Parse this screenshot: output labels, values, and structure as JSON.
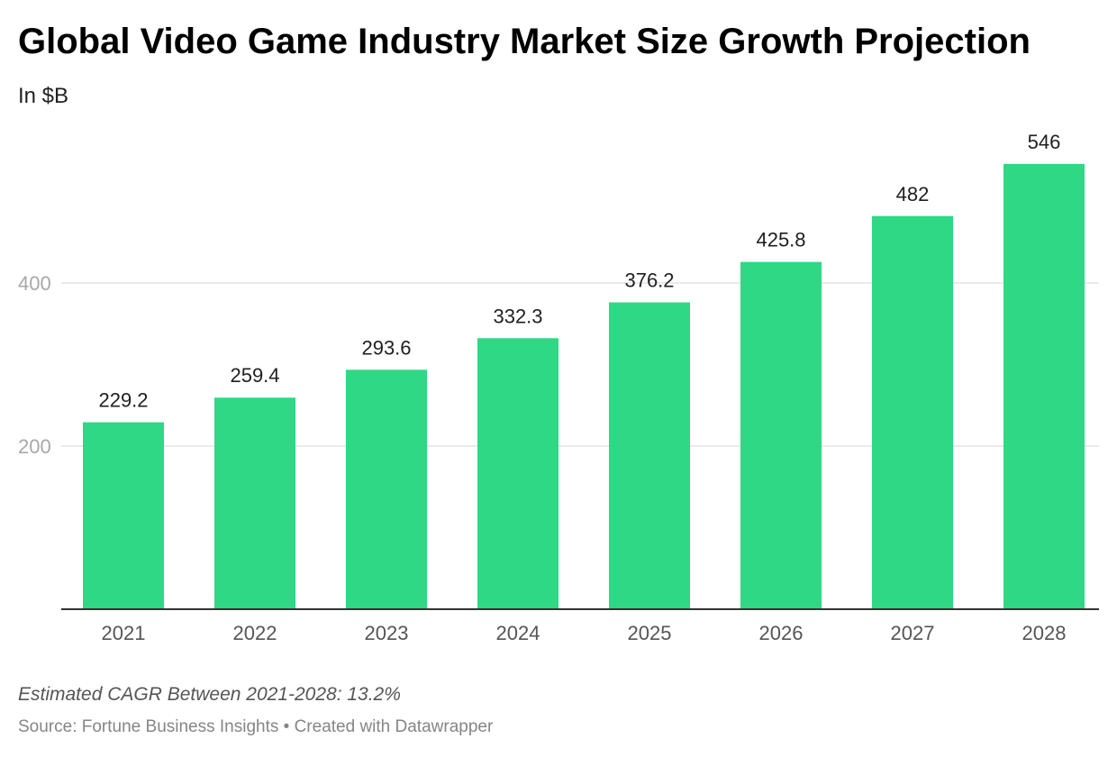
{
  "chart_data": {
    "type": "bar",
    "title": "Global Video Game Industry Market Size Growth Projection",
    "subtitle": "In $B",
    "categories": [
      "2021",
      "2022",
      "2023",
      "2024",
      "2025",
      "2026",
      "2027",
      "2028"
    ],
    "values": [
      229.2,
      259.4,
      293.6,
      332.3,
      376.2,
      425.8,
      482,
      546
    ],
    "value_labels": [
      "229.2",
      "259.4",
      "293.6",
      "332.3",
      "376.2",
      "425.8",
      "482",
      "546"
    ],
    "y_ticks": [
      200,
      400
    ],
    "ylim": [
      0,
      600
    ],
    "grid": true,
    "legend": "none",
    "xlabel": "",
    "ylabel": "",
    "bar_color": "#2ed885",
    "gridline_color": "#e3e3e3",
    "baseline_color": "#333333"
  },
  "footer": {
    "note": "Estimated CAGR Between 2021-2028: 13.2%",
    "source": "Source: Fortune Business Insights • Created with Datawrapper"
  }
}
